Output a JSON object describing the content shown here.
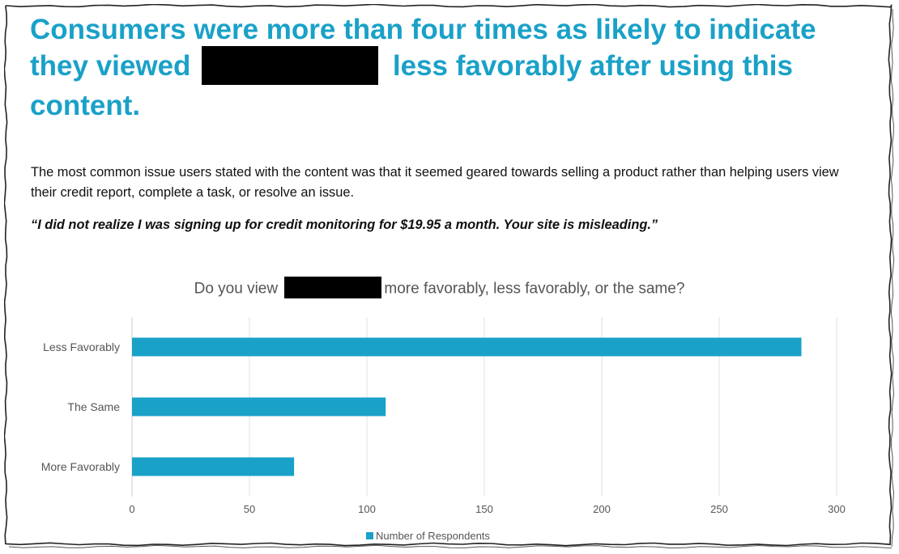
{
  "headline": {
    "before": "Consumers were more than four times as likely to indicate they viewed",
    "after": "less favorably after using this content."
  },
  "body": "The most common issue users stated with the content was that it seemed geared towards selling a product rather than helping users view their credit report, complete a task, or resolve an issue.",
  "quote": "“I did not realize I was signing up for credit monitoring for $19.95 a month. Your site is misleading.”",
  "chart_title": {
    "before": "Do you view",
    "after": "more favorably, less favorably, or the same?"
  },
  "colors": {
    "accent": "#1aa1c8",
    "redaction": "#000000"
  },
  "chart_data": {
    "type": "bar",
    "orientation": "horizontal",
    "categories": [
      "Less Favorably",
      "The Same",
      "More Favorably"
    ],
    "series": [
      {
        "name": "Number of Respondents",
        "values": [
          285,
          108,
          69
        ]
      }
    ],
    "xlim": [
      0,
      300
    ],
    "xticks": [
      0,
      50,
      100,
      150,
      200,
      250,
      300
    ],
    "grid": true,
    "legend": "bottom"
  }
}
